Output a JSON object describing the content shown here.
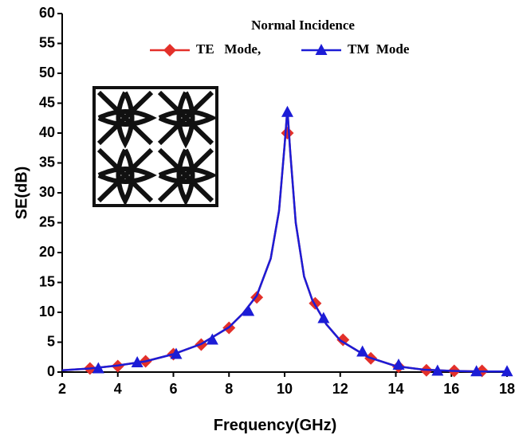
{
  "chart_data": {
    "type": "line",
    "legend_title": "Normal Incidence",
    "x_label": "Frequency(GHz)",
    "y_label": "SE(dB)",
    "xlim": [
      2,
      18
    ],
    "xticks": [
      2,
      4,
      6,
      8,
      10,
      12,
      14,
      16,
      18
    ],
    "ylim": [
      0,
      60
    ],
    "yticks": [
      0,
      5,
      10,
      15,
      20,
      25,
      30,
      35,
      40,
      45,
      50,
      55,
      60
    ],
    "series": [
      {
        "name": "TE   Mode,",
        "color": "#e3302a",
        "marker": "diamond",
        "x": [
          3,
          4,
          5,
          6,
          7,
          8,
          9,
          10.1,
          11.1,
          12.1,
          13.1,
          14.1,
          15.1,
          16.1,
          17.1
        ],
        "values": [
          0.6,
          1.0,
          1.8,
          3.0,
          4.6,
          7.4,
          12.5,
          40,
          11.5,
          5.4,
          2.3,
          0.9,
          0.3,
          0.2,
          0.2
        ],
        "line_x": [
          2,
          3,
          4,
          5,
          6,
          7,
          8,
          8.5,
          9,
          9.5,
          9.8,
          10,
          10.1,
          10.2,
          10.4,
          10.7,
          11,
          11.5,
          12,
          13,
          14,
          15,
          16,
          17,
          18
        ],
        "line_values": [
          0.3,
          0.6,
          1.1,
          1.8,
          3.0,
          4.7,
          7.5,
          9.8,
          12.8,
          19,
          27,
          38,
          44,
          37,
          25,
          16,
          12,
          8,
          5.3,
          2.5,
          1.0,
          0.4,
          0.2,
          0.1,
          0.1
        ]
      },
      {
        "name": "TM  Mode",
        "color": "#1c1cd6",
        "marker": "triangle",
        "x": [
          3.3,
          4.7,
          6.1,
          7.4,
          8.7,
          10.1,
          11.4,
          12.8,
          14.1,
          15.5,
          16.9,
          18
        ],
        "values": [
          0.6,
          1.6,
          3.0,
          5.4,
          10.2,
          43.5,
          9.0,
          3.4,
          1.2,
          0.2,
          0.1,
          0.1
        ],
        "line_x": [
          2,
          3,
          4,
          5,
          6,
          7,
          8,
          8.5,
          9,
          9.5,
          9.8,
          10,
          10.1,
          10.2,
          10.4,
          10.7,
          11,
          11.5,
          12,
          13,
          14,
          15,
          16,
          17,
          18
        ],
        "line_values": [
          0.3,
          0.6,
          1.1,
          1.8,
          3.0,
          4.7,
          7.5,
          9.8,
          12.8,
          19,
          27,
          38,
          44,
          37,
          25,
          16,
          12,
          8,
          5.3,
          2.5,
          1.0,
          0.4,
          0.2,
          0.1,
          0.1
        ]
      }
    ]
  }
}
